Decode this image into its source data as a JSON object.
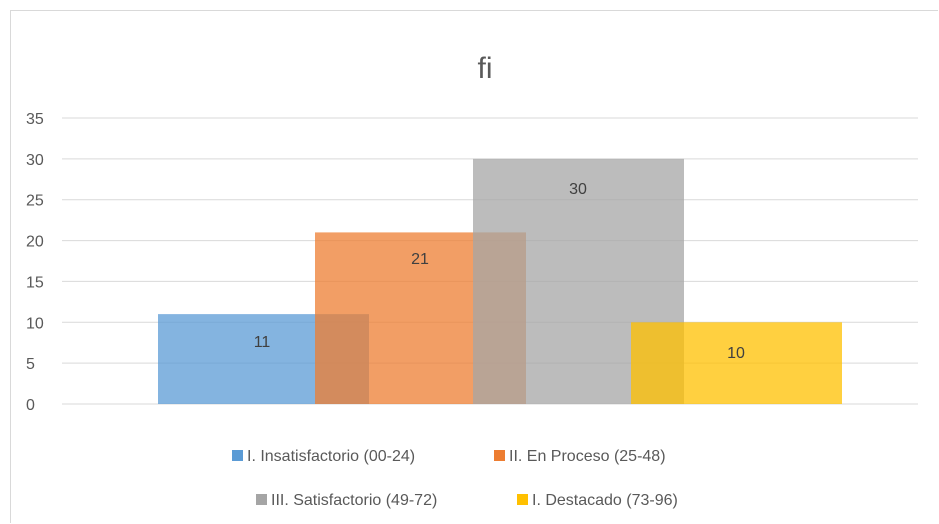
{
  "chart_data": {
    "type": "bar",
    "title": "fi",
    "xlabel": "",
    "ylabel": "",
    "ylim": [
      0,
      35
    ],
    "yticks": [
      0,
      5,
      10,
      15,
      20,
      25,
      30,
      35
    ],
    "grid": true,
    "legend_placement": "bottom",
    "bars_overlap": true,
    "series": [
      {
        "name": "I. Insatisfactorio (00-24)",
        "value": 11,
        "color": "#5b9bd5"
      },
      {
        "name": "II. En Proceso (25-48)",
        "value": 21,
        "color": "#ed7d31"
      },
      {
        "name": "III. Satisfactorio (49-72)",
        "value": 30,
        "color": "#a5a5a5"
      },
      {
        "name": "I. Destacado (73-96)",
        "value": 10,
        "color": "#ffc000"
      }
    ]
  }
}
